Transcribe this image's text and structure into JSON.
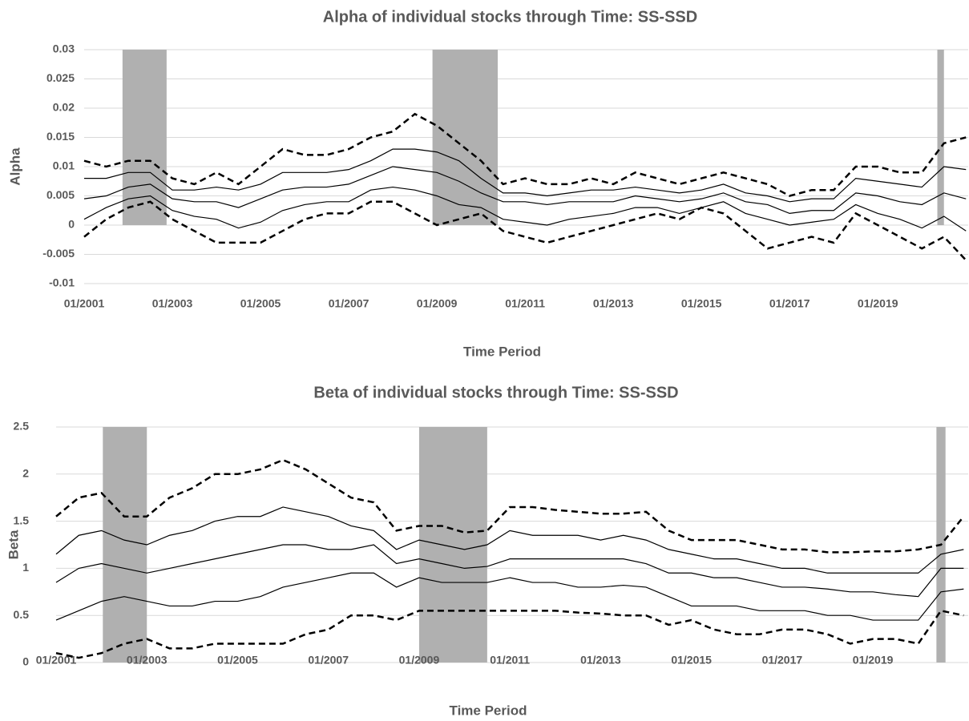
{
  "chart_data": [
    {
      "type": "line",
      "title": "Alpha of individual stocks through Time: SS-SSD",
      "x_label": "Time Period",
      "y_label": "Alpha",
      "x": [
        2001,
        2001.5,
        2002,
        2002.5,
        2003,
        2003.5,
        2004,
        2004.5,
        2005,
        2005.5,
        2006,
        2006.5,
        2007,
        2007.5,
        2008,
        2008.5,
        2009,
        2009.5,
        2010,
        2010.5,
        2011,
        2011.5,
        2012,
        2012.5,
        2013,
        2013.5,
        2014,
        2014.5,
        2015,
        2015.5,
        2016,
        2016.5,
        2017,
        2017.5,
        2018,
        2018.5,
        2019,
        2019.5,
        2020,
        2020.5,
        2021
      ],
      "xlim": [
        2001,
        2021.05
      ],
      "xticks": [
        {
          "value": 2001,
          "label": "01/2001"
        },
        {
          "value": 2003,
          "label": "01/2003"
        },
        {
          "value": 2005,
          "label": "01/2005"
        },
        {
          "value": 2007,
          "label": "01/2007"
        },
        {
          "value": 2009,
          "label": "01/2009"
        },
        {
          "value": 2011,
          "label": "01/2011"
        },
        {
          "value": 2013,
          "label": "01/2013"
        },
        {
          "value": 2015,
          "label": "01/2015"
        },
        {
          "value": 2017,
          "label": "01/2017"
        },
        {
          "value": 2019,
          "label": "01/2019"
        }
      ],
      "ylim": [
        -0.01,
        0.03
      ],
      "yticks": [
        -0.01,
        -0.005,
        0,
        0.005,
        0.01,
        0.015,
        0.02,
        0.025,
        0.03
      ],
      "grid": true,
      "shaded": [
        [
          2001.87,
          2002.87
        ],
        [
          2008.9,
          2010.38
        ],
        [
          2020.35,
          2020.5
        ]
      ],
      "shade_color": "#b0b0b0",
      "series": [
        {
          "color": "#000000",
          "dashed": true,
          "values": [
            0.011,
            0.01,
            0.011,
            0.011,
            0.008,
            0.007,
            0.009,
            0.007,
            0.01,
            0.013,
            0.012,
            0.012,
            0.013,
            0.015,
            0.016,
            0.019,
            0.017,
            0.014,
            0.011,
            0.007,
            0.008,
            0.007,
            0.007,
            0.008,
            0.007,
            0.009,
            0.008,
            0.007,
            0.008,
            0.009,
            0.008,
            0.007,
            0.005,
            0.006,
            0.006,
            0.01,
            0.01,
            0.009,
            0.009,
            0.014,
            0.015
          ]
        },
        {
          "color": "#000000",
          "dashed": false,
          "values": [
            0.008,
            0.008,
            0.009,
            0.009,
            0.006,
            0.006,
            0.0065,
            0.006,
            0.007,
            0.009,
            0.009,
            0.009,
            0.0095,
            0.011,
            0.013,
            0.013,
            0.0125,
            0.011,
            0.008,
            0.0055,
            0.0055,
            0.005,
            0.0055,
            0.006,
            0.006,
            0.0065,
            0.006,
            0.0055,
            0.006,
            0.007,
            0.0055,
            0.005,
            0.004,
            0.0045,
            0.0045,
            0.008,
            0.0075,
            0.007,
            0.0065,
            0.01,
            0.0095
          ]
        },
        {
          "color": "#000000",
          "dashed": false,
          "values": [
            0.0045,
            0.005,
            0.0065,
            0.007,
            0.0045,
            0.004,
            0.004,
            0.003,
            0.0045,
            0.006,
            0.0065,
            0.0065,
            0.007,
            0.0085,
            0.01,
            0.0095,
            0.009,
            0.0075,
            0.0055,
            0.004,
            0.004,
            0.0035,
            0.004,
            0.004,
            0.004,
            0.005,
            0.0045,
            0.004,
            0.0045,
            0.0055,
            0.004,
            0.0035,
            0.002,
            0.0025,
            0.0025,
            0.0055,
            0.005,
            0.004,
            0.0035,
            0.0055,
            0.0045
          ]
        },
        {
          "color": "#000000",
          "dashed": false,
          "values": [
            0.001,
            0.003,
            0.0045,
            0.005,
            0.0025,
            0.0015,
            0.001,
            -0.0005,
            0.0005,
            0.0025,
            0.0035,
            0.004,
            0.004,
            0.006,
            0.0065,
            0.006,
            0.005,
            0.0035,
            0.003,
            0.001,
            0.0005,
            0,
            0.001,
            0.0015,
            0.002,
            0.003,
            0.003,
            0.002,
            0.003,
            0.004,
            0.002,
            0.001,
            0,
            0.0005,
            0.001,
            0.0035,
            0.002,
            0.001,
            -0.0005,
            0.0015,
            -0.001
          ]
        },
        {
          "color": "#000000",
          "dashed": true,
          "values": [
            -0.002,
            0.001,
            0.003,
            0.004,
            0.001,
            -0.001,
            -0.003,
            -0.003,
            -0.003,
            -0.001,
            0.001,
            0.002,
            0.002,
            0.004,
            0.004,
            0.002,
            0,
            0.001,
            0.002,
            -0.001,
            -0.002,
            -0.003,
            -0.002,
            -0.001,
            0,
            0.001,
            0.002,
            0.001,
            0.003,
            0.002,
            -0.001,
            -0.004,
            -0.003,
            -0.002,
            -0.003,
            0.002,
            0,
            -0.002,
            -0.004,
            -0.002,
            -0.006
          ]
        }
      ]
    },
    {
      "type": "line",
      "title": "Beta of individual stocks through Time: SS-SSD",
      "x_label": "Time Period",
      "y_label": "Beta",
      "x": [
        2001,
        2001.5,
        2002,
        2002.5,
        2003,
        2003.5,
        2004,
        2004.5,
        2005,
        2005.5,
        2006,
        2006.5,
        2007,
        2007.5,
        2008,
        2008.5,
        2009,
        2009.5,
        2010,
        2010.5,
        2011,
        2011.5,
        2012,
        2012.5,
        2013,
        2013.5,
        2014,
        2014.5,
        2015,
        2015.5,
        2016,
        2016.5,
        2017,
        2017.5,
        2018,
        2018.5,
        2019,
        2019.5,
        2020,
        2020.5,
        2021
      ],
      "xlim": [
        2001,
        2021.1
      ],
      "xticks": [
        {
          "value": 2001,
          "label": "01/2001"
        },
        {
          "value": 2003,
          "label": "01/2003"
        },
        {
          "value": 2005,
          "label": "01/2005"
        },
        {
          "value": 2007,
          "label": "01/2007"
        },
        {
          "value": 2009,
          "label": "01/2009"
        },
        {
          "value": 2011,
          "label": "01/2011"
        },
        {
          "value": 2013,
          "label": "01/2013"
        },
        {
          "value": 2015,
          "label": "01/2015"
        },
        {
          "value": 2017,
          "label": "01/2017"
        },
        {
          "value": 2019,
          "label": "01/2019"
        }
      ],
      "ylim": [
        0,
        2.5
      ],
      "yticks": [
        0,
        0.5,
        1,
        1.5,
        2,
        2.5
      ],
      "grid": true,
      "shaded": [
        [
          2002.03,
          2003.0
        ],
        [
          2009.0,
          2010.5
        ],
        [
          2020.4,
          2020.6
        ]
      ],
      "shade_color": "#b0b0b0",
      "series": [
        {
          "color": "#000000",
          "dashed": true,
          "values": [
            1.55,
            1.75,
            1.8,
            1.55,
            1.55,
            1.75,
            1.85,
            2.0,
            2.0,
            2.05,
            2.15,
            2.05,
            1.9,
            1.75,
            1.7,
            1.4,
            1.45,
            1.45,
            1.38,
            1.4,
            1.65,
            1.65,
            1.62,
            1.6,
            1.58,
            1.58,
            1.6,
            1.4,
            1.3,
            1.3,
            1.3,
            1.25,
            1.2,
            1.2,
            1.17,
            1.17,
            1.18,
            1.18,
            1.2,
            1.25,
            1.55
          ]
        },
        {
          "color": "#000000",
          "dashed": false,
          "values": [
            1.15,
            1.35,
            1.4,
            1.3,
            1.25,
            1.35,
            1.4,
            1.5,
            1.55,
            1.55,
            1.65,
            1.6,
            1.55,
            1.45,
            1.4,
            1.2,
            1.3,
            1.25,
            1.2,
            1.25,
            1.4,
            1.35,
            1.35,
            1.35,
            1.3,
            1.35,
            1.3,
            1.2,
            1.15,
            1.1,
            1.1,
            1.05,
            1.0,
            1.0,
            0.95,
            0.95,
            0.95,
            0.95,
            0.95,
            1.15,
            1.2
          ]
        },
        {
          "color": "#000000",
          "dashed": false,
          "values": [
            0.85,
            1.0,
            1.05,
            1.0,
            0.95,
            1.0,
            1.05,
            1.1,
            1.15,
            1.2,
            1.25,
            1.25,
            1.2,
            1.2,
            1.25,
            1.05,
            1.1,
            1.05,
            1.0,
            1.02,
            1.1,
            1.1,
            1.1,
            1.1,
            1.1,
            1.1,
            1.05,
            0.95,
            0.95,
            0.9,
            0.9,
            0.85,
            0.8,
            0.8,
            0.78,
            0.75,
            0.75,
            0.72,
            0.7,
            1.0,
            1.0
          ]
        },
        {
          "color": "#000000",
          "dashed": false,
          "values": [
            0.45,
            0.55,
            0.65,
            0.7,
            0.65,
            0.6,
            0.6,
            0.65,
            0.65,
            0.7,
            0.8,
            0.85,
            0.9,
            0.95,
            0.95,
            0.8,
            0.9,
            0.85,
            0.85,
            0.85,
            0.9,
            0.85,
            0.85,
            0.8,
            0.8,
            0.82,
            0.8,
            0.7,
            0.6,
            0.6,
            0.6,
            0.55,
            0.55,
            0.55,
            0.5,
            0.5,
            0.45,
            0.45,
            0.45,
            0.75,
            0.78
          ]
        },
        {
          "color": "#000000",
          "dashed": true,
          "values": [
            0.1,
            0.05,
            0.1,
            0.2,
            0.25,
            0.15,
            0.15,
            0.2,
            0.2,
            0.2,
            0.2,
            0.3,
            0.35,
            0.5,
            0.5,
            0.45,
            0.55,
            0.55,
            0.55,
            0.55,
            0.55,
            0.55,
            0.55,
            0.53,
            0.52,
            0.5,
            0.5,
            0.4,
            0.45,
            0.35,
            0.3,
            0.3,
            0.35,
            0.35,
            0.3,
            0.2,
            0.25,
            0.25,
            0.2,
            0.55,
            0.5
          ]
        }
      ]
    }
  ]
}
